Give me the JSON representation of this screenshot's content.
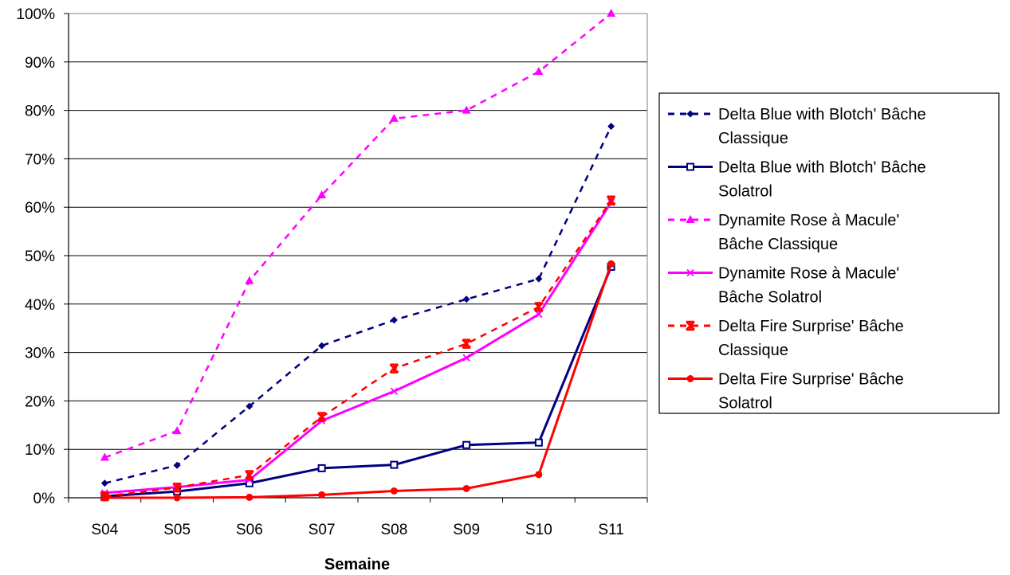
{
  "chart_data": {
    "type": "line",
    "title": "",
    "xlabel": "Semaine",
    "ylabel": "",
    "ylim": [
      0,
      100
    ],
    "y_ticks": [
      "0%",
      "10%",
      "20%",
      "30%",
      "40%",
      "50%",
      "60%",
      "70%",
      "80%",
      "90%",
      "100%"
    ],
    "y_unit": "%",
    "grid": "horizontal",
    "legend_position": "right",
    "categories": [
      "S04",
      "S05",
      "S06",
      "S07",
      "S08",
      "S09",
      "S10",
      "S11"
    ],
    "series": [
      {
        "name": "Delta Blue with Blotch' Bâche Classique",
        "legend_lines": [
          "Delta Blue with Blotch' Bâche",
          "Classique"
        ],
        "color": "#000080",
        "dash": "dashed",
        "marker": "diamond",
        "values": [
          3,
          6.7,
          18.9,
          31.4,
          36.7,
          41,
          45.2,
          76.7
        ]
      },
      {
        "name": "Delta Blue with Blotch' Bâche Solatrol",
        "legend_lines": [
          "Delta Blue with Blotch' Bâche",
          "Solatrol"
        ],
        "color": "#000080",
        "dash": "solid",
        "marker": "square",
        "values": [
          0.3,
          1.3,
          3,
          6.1,
          6.8,
          10.9,
          11.4,
          47.7
        ]
      },
      {
        "name": "Dynamite Rose à Macule' Bâche Classique",
        "legend_lines": [
          "Dynamite Rose à Macule'",
          "Bâche Classique"
        ],
        "color": "#ff00ff",
        "dash": "dashed",
        "marker": "triangle",
        "values": [
          8.3,
          13.8,
          44.8,
          62.5,
          78.3,
          80,
          88,
          100
        ]
      },
      {
        "name": "Dynamite Rose à Macule' Bâche Solatrol",
        "legend_lines": [
          "Dynamite Rose à Macule'",
          "Bâche Solatrol"
        ],
        "color": "#ff00ff",
        "dash": "solid",
        "marker": "x",
        "values": [
          1,
          2.2,
          3.7,
          15.9,
          22,
          28.9,
          37.9,
          61
        ]
      },
      {
        "name": "Delta Fire Surprise' Bâche Classique",
        "legend_lines": [
          "Delta Fire Surprise' Bâche",
          "Classique"
        ],
        "color": "#ff0000",
        "dash": "dashed",
        "marker": "asterisk",
        "values": [
          0.3,
          2.1,
          4.7,
          16.7,
          26.7,
          31.8,
          39.4,
          61.4
        ]
      },
      {
        "name": "Delta Fire Surprise' Bâche Solatrol",
        "legend_lines": [
          "Delta Fire Surprise' Bâche",
          "Solatrol"
        ],
        "color": "#ff0000",
        "dash": "solid",
        "marker": "circle",
        "values": [
          0,
          0,
          0.1,
          0.6,
          1.4,
          1.9,
          4.8,
          48.3
        ]
      }
    ]
  }
}
